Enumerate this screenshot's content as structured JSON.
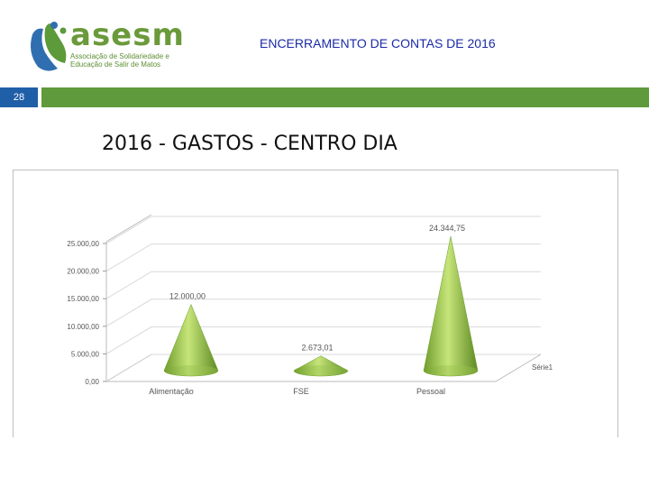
{
  "header": {
    "brand": "asesm",
    "brand_sub": "Associação de Solidariedade e Educação de Salir de Matos",
    "title": "ENCERRAMENTO DE CONTAS DE 2016"
  },
  "page_number": "28",
  "slide_title": "2016  -  GASTOS  -  CENTRO DIA",
  "colors": {
    "accent_green": "#5f9a3c",
    "badge_blue": "#1f5fa8",
    "title_blue": "#1a2aa8",
    "cone_green": "#8cbf3f"
  },
  "chart_data": {
    "type": "bar",
    "bar_shape": "cone-3d",
    "categories": [
      "Alimentação",
      "FSE",
      "Pessoal"
    ],
    "series": [
      {
        "name": "Série1",
        "values": [
          12000.0,
          2673.01,
          24344.75
        ],
        "labels": [
          "12.000,00",
          "2.673,01",
          "24.344,75"
        ]
      }
    ],
    "y_ticks": [
      "0,00",
      "5.000,00",
      "10.000,00",
      "15.000,00",
      "20.000,00",
      "25.000,00"
    ],
    "ylim": [
      0,
      25000
    ],
    "grid": true,
    "legend": "none"
  }
}
